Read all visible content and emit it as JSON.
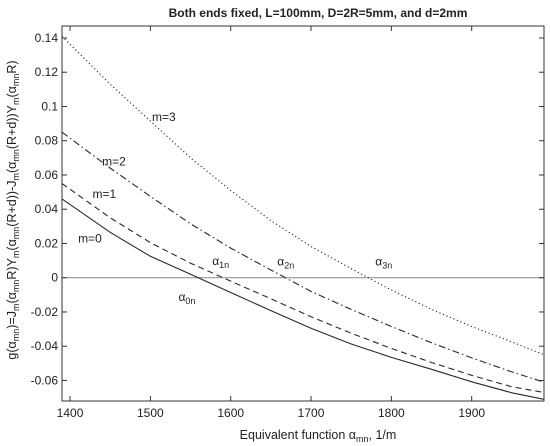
{
  "chart_data": {
    "type": "line",
    "title": "Both ends fixed, L=100mm, D=2R=5mm, and d=2mm",
    "xlabel": {
      "main": "Equivalent function α",
      "sub": "mn",
      "tail": ", 1/m"
    },
    "ylabel": {
      "parts": [
        {
          "t": "g(α",
          "s": false
        },
        {
          "t": "mn",
          "s": true
        },
        {
          "t": ")=J",
          "s": false
        },
        {
          "t": "m",
          "s": true
        },
        {
          "t": "(α",
          "s": false
        },
        {
          "t": "mn",
          "s": true
        },
        {
          "t": "R)Y",
          "s": false
        },
        {
          "t": "m",
          "s": true
        },
        {
          "t": "(α",
          "s": false
        },
        {
          "t": "mn",
          "s": true
        },
        {
          "t": "(R+d))-J",
          "s": false
        },
        {
          "t": "m",
          "s": true
        },
        {
          "t": "(α",
          "s": false
        },
        {
          "t": "mn",
          "s": true
        },
        {
          "t": "(R+d))Y",
          "s": false
        },
        {
          "t": "m",
          "s": true
        },
        {
          "t": "(α",
          "s": false
        },
        {
          "t": "mn",
          "s": true
        },
        {
          "t": "R)",
          "s": false
        }
      ]
    },
    "xlim": [
      1390,
      1990
    ],
    "ylim": [
      -0.072,
      0.147
    ],
    "xticks": [
      1400,
      1500,
      1600,
      1700,
      1800,
      1900
    ],
    "yticks": [
      -0.06,
      -0.04,
      -0.02,
      0,
      0.02,
      0.04,
      0.06,
      0.08,
      0.1,
      0.12,
      0.14
    ],
    "ytick_labels": [
      "-0.06",
      "-0.04",
      "-0.02",
      "0",
      "0.02",
      "0.04",
      "0.06",
      "0.08",
      "0.1",
      "0.12",
      "0.14"
    ],
    "grid": false,
    "legend": "none",
    "zero_line": true,
    "series": [
      {
        "name": "m=0",
        "dash": "solid",
        "x": [
          1390,
          1450,
          1500,
          1550,
          1600,
          1650,
          1700,
          1750,
          1800,
          1850,
          1900,
          1950,
          1990
        ],
        "y": [
          0.046,
          0.0265,
          0.0125,
          0.002,
          -0.0086,
          -0.0192,
          -0.0295,
          -0.0387,
          -0.0465,
          -0.0535,
          -0.0608,
          -0.0672,
          -0.071
        ]
      },
      {
        "name": "m=1",
        "dash": "dashed",
        "x": [
          1390,
          1450,
          1500,
          1550,
          1600,
          1650,
          1700,
          1750,
          1800,
          1850,
          1900,
          1950,
          1990
        ],
        "y": [
          0.055,
          0.035,
          0.0205,
          0.0085,
          -0.002,
          -0.0123,
          -0.0228,
          -0.0324,
          -0.0413,
          -0.0495,
          -0.057,
          -0.0637,
          -0.067
        ]
      },
      {
        "name": "m=2",
        "dash": "dashdot",
        "x": [
          1390,
          1450,
          1500,
          1550,
          1600,
          1650,
          1700,
          1750,
          1800,
          1850,
          1900,
          1950,
          1990
        ],
        "y": [
          0.085,
          0.064,
          0.0475,
          0.0315,
          0.0173,
          0.0045,
          -0.008,
          -0.0185,
          -0.0285,
          -0.038,
          -0.0468,
          -0.055,
          -0.061
        ]
      },
      {
        "name": "m=3",
        "dash": "dotted",
        "x": [
          1390,
          1450,
          1500,
          1550,
          1600,
          1650,
          1700,
          1750,
          1800,
          1850,
          1900,
          1950,
          1990
        ],
        "y": [
          0.141,
          0.113,
          0.0915,
          0.07,
          0.051,
          0.0334,
          0.0182,
          0.0053,
          -0.0072,
          -0.0185,
          -0.0285,
          -0.0375,
          -0.045
        ]
      }
    ],
    "annotations": [
      {
        "text": "m=3",
        "sub": "",
        "x": 1502,
        "y": 0.0915
      },
      {
        "text": "m=2",
        "sub": "",
        "x": 1440,
        "y": 0.0655
      },
      {
        "text": "m=1",
        "sub": "",
        "x": 1428,
        "y": 0.0465
      },
      {
        "text": "m=0",
        "sub": "",
        "x": 1410,
        "y": 0.0205
      },
      {
        "text": "α",
        "sub": "1n",
        "x": 1577,
        "y": 0.0075
      },
      {
        "text": "α",
        "sub": "2n",
        "x": 1658,
        "y": 0.007
      },
      {
        "text": "α",
        "sub": "3n",
        "x": 1780,
        "y": 0.007
      },
      {
        "text": "α",
        "sub": "0n",
        "x": 1535,
        "y": -0.0135
      }
    ]
  }
}
